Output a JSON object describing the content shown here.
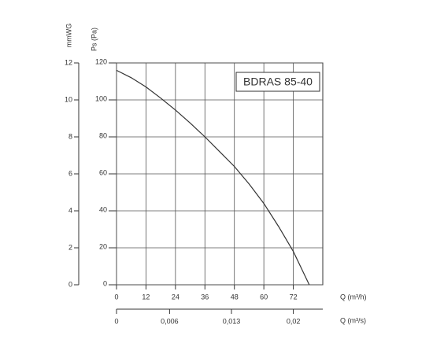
{
  "chart_data": {
    "type": "line",
    "series": [
      {
        "name": "BDRAS 85-40",
        "color": "#333333",
        "x": [
          0,
          6,
          12,
          18,
          24,
          30,
          36,
          42,
          48,
          54,
          60,
          66,
          72,
          78.5
        ],
        "values": [
          116,
          112,
          107,
          101,
          94.5,
          87.5,
          80,
          72,
          64,
          54.5,
          44,
          31.5,
          18,
          0
        ]
      }
    ],
    "xlabel": "Q (m³/h)",
    "xlim": [
      0,
      84
    ],
    "xticks": [
      0,
      12,
      24,
      36,
      48,
      60,
      72
    ],
    "x2label": "Q (m³/s)",
    "x2lim": [
      0,
      0.02333
    ],
    "x2ticks": [
      0,
      {
        "value": 0.006,
        "label": "0,006"
      },
      {
        "value": 0.013,
        "label": "0,013"
      },
      {
        "value": 0.02,
        "label": "0,02"
      }
    ],
    "ylabel": "Ps (Pa)",
    "ylim": [
      0,
      120
    ],
    "yticks": [
      0,
      20,
      40,
      60,
      80,
      100,
      120
    ],
    "y2label": "mmWG",
    "y2lim": [
      0,
      12
    ],
    "y2ticks": [
      0,
      2,
      4,
      6,
      8,
      10,
      12
    ],
    "grid": true
  }
}
